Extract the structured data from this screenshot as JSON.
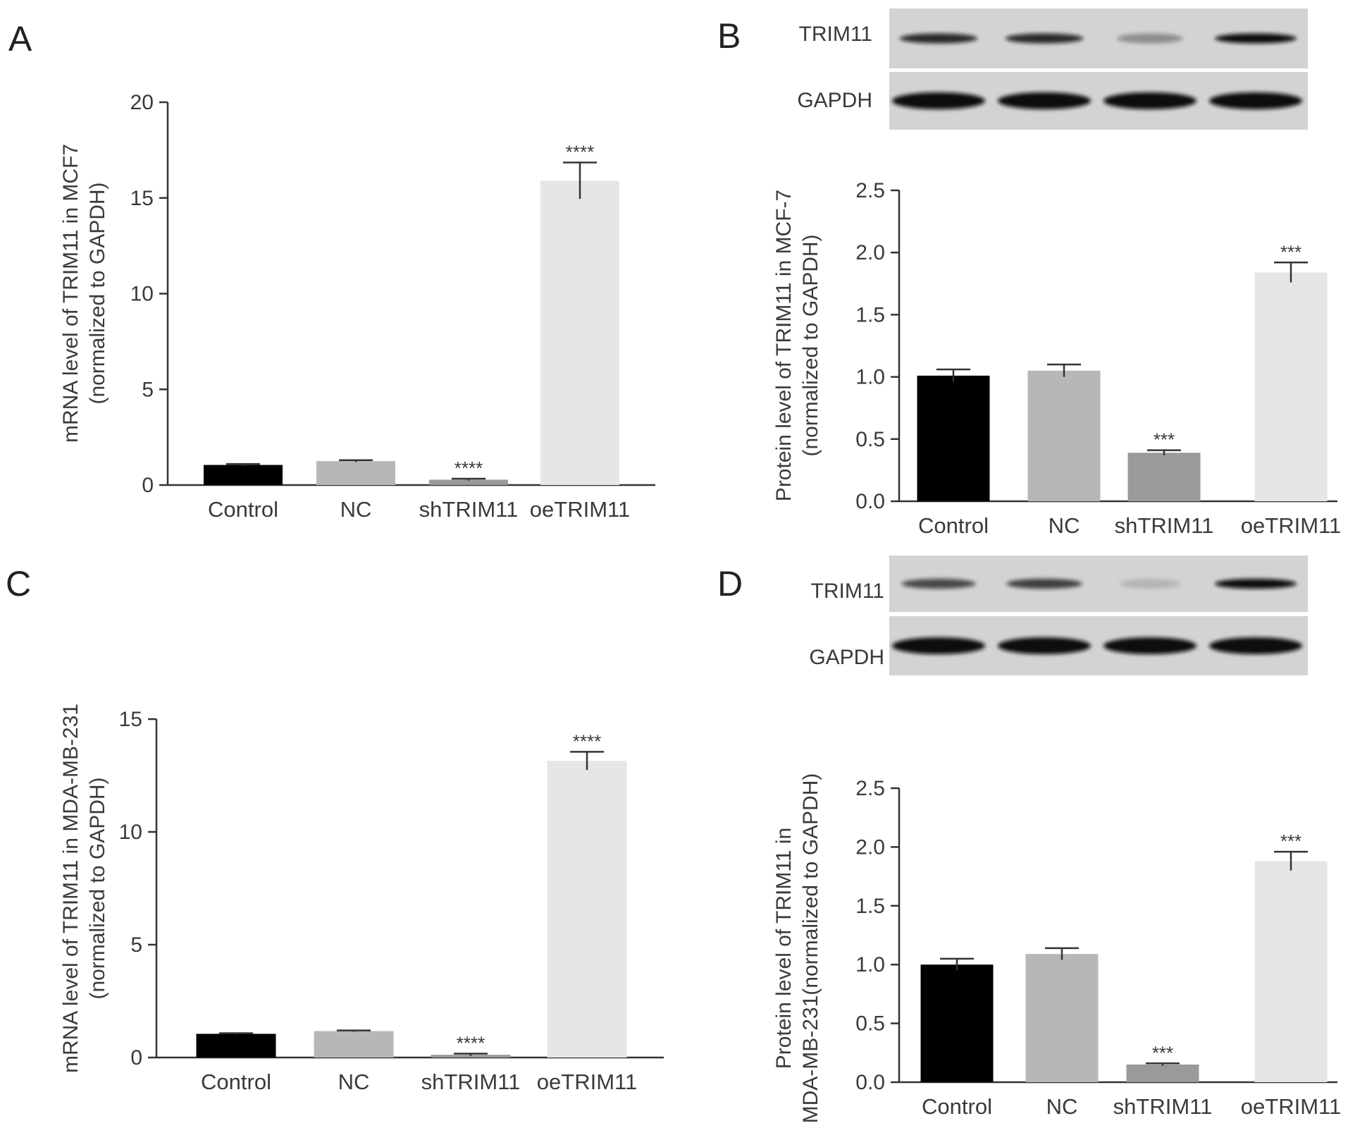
{
  "palette": [
    "#000000",
    "#b7b7b7",
    "#9a9a9a",
    "#e6e6e6"
  ],
  "chart_data": [
    {
      "panel": "A",
      "type": "bar",
      "categories": [
        "Control",
        "NC",
        "shTRIM11",
        "oeTRIM11"
      ],
      "values": [
        1.05,
        1.25,
        0.28,
        15.9
      ],
      "errors": [
        0.05,
        0.05,
        0.05,
        0.95
      ],
      "significance": [
        "",
        "",
        "****",
        "****"
      ],
      "ylabel": [
        "mRNA level of TRIM11 in MCF7",
        "(normalized to GAPDH)"
      ],
      "ylim": [
        0,
        20
      ],
      "yticks": [
        0,
        5,
        10,
        15,
        20
      ],
      "ytick_labels": [
        "0",
        "5",
        "10",
        "15",
        "20"
      ]
    },
    {
      "panel": "B",
      "type": "bar",
      "categories": [
        "Control",
        "NC",
        "shTRIM11",
        "oeTRIM11"
      ],
      "values": [
        1.01,
        1.05,
        0.39,
        1.84
      ],
      "errors": [
        0.05,
        0.05,
        0.02,
        0.08
      ],
      "significance": [
        "",
        "",
        "***",
        "***"
      ],
      "ylabel": [
        "Protein level of TRIM11 in MCF-7",
        "(normalized to GAPDH)"
      ],
      "ylim": [
        0,
        2.5
      ],
      "yticks": [
        0,
        0.5,
        1.0,
        1.5,
        2.0,
        2.5
      ],
      "ytick_labels": [
        "0.0",
        "0.5",
        "1.0",
        "1.5",
        "2.0",
        "2.5"
      ]
    },
    {
      "panel": "C",
      "type": "bar",
      "categories": [
        "Control",
        "NC",
        "shTRIM11",
        "oeTRIM11"
      ],
      "values": [
        1.05,
        1.17,
        0.12,
        13.15
      ],
      "errors": [
        0.03,
        0.03,
        0.05,
        0.4
      ],
      "significance": [
        "",
        "",
        "****",
        "****"
      ],
      "ylabel": [
        "mRNA level of TRIM11 in MDA-MB-231",
        "(normalized to GAPDH)"
      ],
      "ylim": [
        0,
        15
      ],
      "yticks": [
        0,
        5,
        10,
        15
      ],
      "ytick_labels": [
        "0",
        "5",
        "10",
        "15"
      ]
    },
    {
      "panel": "D",
      "type": "bar",
      "categories": [
        "Control",
        "NC",
        "shTRIM11",
        "oeTRIM11"
      ],
      "values": [
        1.0,
        1.09,
        0.15,
        1.88
      ],
      "errors": [
        0.05,
        0.05,
        0.01,
        0.08
      ],
      "significance": [
        "",
        "",
        "***",
        "***"
      ],
      "ylabel": [
        "Protein level of TRIM11 in",
        "MDA-MB-231(normalized to GAPDH)"
      ],
      "ylim": [
        0,
        2.5
      ],
      "yticks": [
        0,
        0.5,
        1.0,
        1.5,
        2.0,
        2.5
      ],
      "ytick_labels": [
        "0.0",
        "0.5",
        "1.0",
        "1.5",
        "2.0",
        "2.5"
      ]
    }
  ],
  "blots": [
    {
      "panel": "B",
      "rows": [
        {
          "label": "TRIM11",
          "intensity": [
            0.85,
            0.85,
            0.35,
            1.0
          ]
        },
        {
          "label": "GAPDH",
          "intensity": [
            1.0,
            1.0,
            1.0,
            1.0
          ]
        }
      ]
    },
    {
      "panel": "D",
      "rows": [
        {
          "label": "TRIM11",
          "intensity": [
            0.7,
            0.75,
            0.15,
            1.0
          ]
        },
        {
          "label": "GAPDH",
          "intensity": [
            1.0,
            1.0,
            1.0,
            1.0
          ]
        }
      ]
    }
  ]
}
